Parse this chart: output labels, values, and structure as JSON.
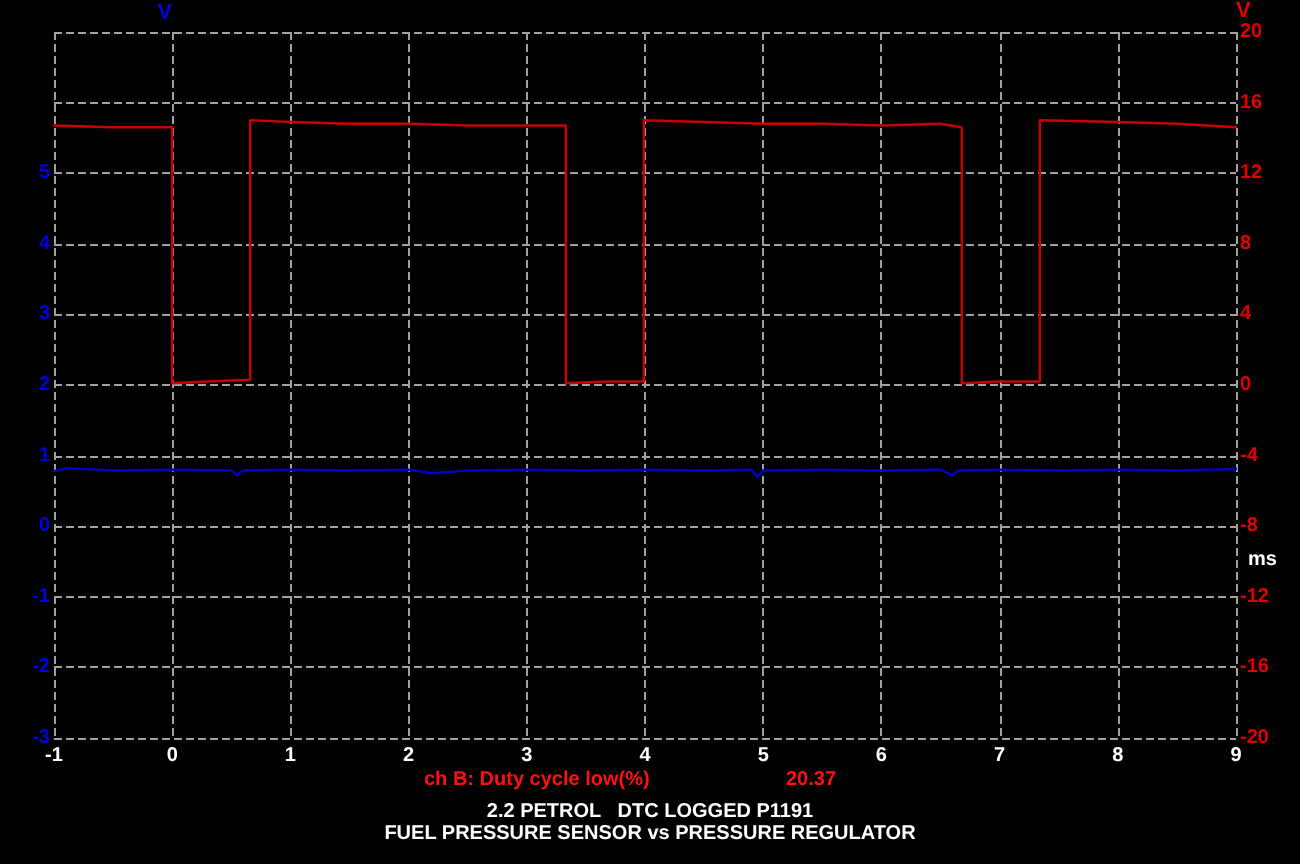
{
  "chart_data": {
    "type": "line",
    "title": "2.2 PETROL   DTC LOGGED P1191",
    "subtitle": "FUEL PRESSURE SENSOR vs PRESSURE REGULATOR",
    "xlabel": "ms",
    "ylabel": "V",
    "y2label": "V",
    "annotations": [
      "ch B: Duty cycle low(%)",
      "20.37"
    ],
    "series": [
      {
        "color": "#0000c8",
        "x": [
          -1,
          -0.9,
          -0.5,
          0,
          0.5,
          0.55,
          0.6,
          1,
          1.5,
          2,
          2.2,
          2.5,
          3,
          3.5,
          4,
          4.5,
          4.9,
          4.95,
          5,
          5.5,
          6,
          6.5,
          6.6,
          6.65,
          7,
          7.5,
          8,
          8.5,
          9
        ],
        "values": [
          0.78,
          0.82,
          0.79,
          0.8,
          0.79,
          0.72,
          0.79,
          0.8,
          0.79,
          0.8,
          0.75,
          0.79,
          0.8,
          0.79,
          0.8,
          0.79,
          0.8,
          0.7,
          0.79,
          0.8,
          0.79,
          0.8,
          0.72,
          0.79,
          0.8,
          0.79,
          0.8,
          0.79,
          0.81
        ]
      },
      {
        "color": "#c80000",
        "axis": "y2",
        "x": [
          -1,
          -0.5,
          0,
          0,
          0.3,
          0.66,
          0.66,
          1,
          1.5,
          2,
          2.5,
          3,
          3.33,
          3.33,
          3.7,
          3.99,
          3.99,
          4.5,
          5,
          5.5,
          6,
          6.5,
          6.68,
          6.68,
          7,
          7.34,
          7.34,
          8,
          8.5,
          9
        ],
        "values": [
          14.7,
          14.6,
          14.6,
          0.1,
          0.2,
          0.3,
          15.0,
          14.9,
          14.8,
          14.8,
          14.7,
          14.7,
          14.7,
          0.1,
          0.2,
          0.2,
          15.0,
          14.9,
          14.8,
          14.8,
          14.7,
          14.8,
          14.6,
          0.1,
          0.2,
          0.2,
          15.0,
          14.9,
          14.8,
          14.6
        ]
      }
    ],
    "xlim": [
      -1,
      9
    ],
    "xticks": [
      -1,
      0,
      1,
      2,
      3,
      4,
      5,
      6,
      7,
      8,
      9
    ],
    "ylim": [
      -3,
      7
    ],
    "yticks": [
      -3,
      -2,
      -1,
      0,
      1,
      2,
      3,
      4,
      5,
      {
        "value": 6,
        "label": null
      },
      {
        "value": 7,
        "label": null
      }
    ],
    "y2lim": [
      -20,
      20
    ],
    "y2ticks": [
      -20,
      -16,
      -12,
      -8,
      -4,
      0,
      4,
      8,
      12,
      16,
      20
    ],
    "grid": true,
    "marker": "none",
    "line_style": "solid"
  }
}
